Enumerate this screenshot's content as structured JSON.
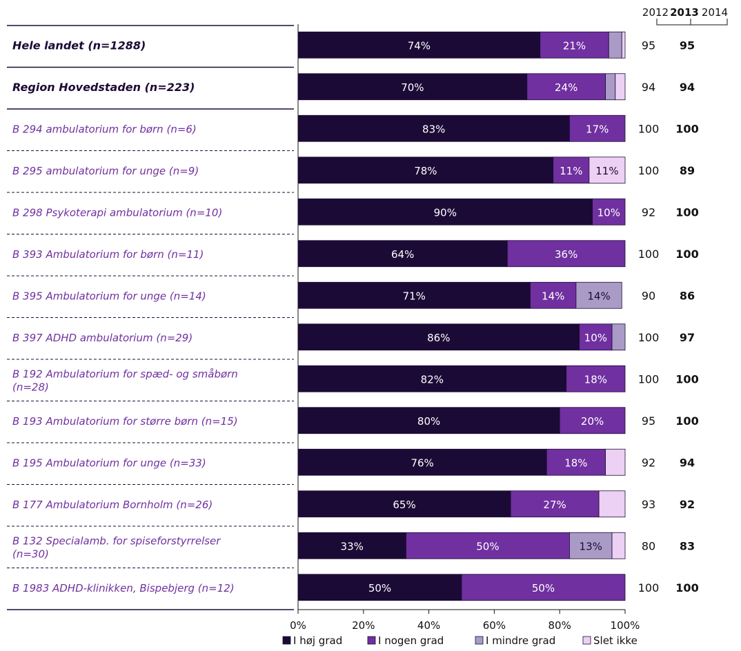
{
  "chart_data": {
    "type": "bar",
    "orientation": "horizontal",
    "stacked": true,
    "normalized_percent": true,
    "xlim": [
      0,
      100
    ],
    "x_ticks": [
      "0%",
      "20%",
      "40%",
      "60%",
      "80%",
      "100%"
    ],
    "grid": false,
    "legend_position": "bottom",
    "colors": {
      "I høj grad": "#1c0a36",
      "I nogen grad": "#7030a0",
      "I mindre grad": "#a99bc6",
      "Slet ikke": "#ecd1f4",
      "label_text": "#7030a0",
      "main_text": "#1c0a36"
    },
    "series": [
      {
        "name": "I høj grad",
        "values": [
          74,
          70,
          83,
          78,
          90,
          64,
          71,
          86,
          82,
          80,
          76,
          65,
          33,
          50
        ]
      },
      {
        "name": "I nogen grad",
        "values": [
          21,
          24,
          17,
          11,
          10,
          36,
          14,
          10,
          18,
          20,
          18,
          27,
          50,
          50
        ]
      },
      {
        "name": "I mindre grad",
        "values": [
          4,
          3,
          0,
          0,
          0,
          0,
          14,
          4,
          0,
          0,
          0,
          0,
          13,
          0
        ]
      },
      {
        "name": "Slet ikke",
        "values": [
          1,
          3,
          0,
          11,
          0,
          0,
          0,
          0,
          0,
          0,
          6,
          8,
          4,
          0
        ]
      }
    ],
    "data_labels": [
      [
        "74%",
        "21%",
        "",
        ""
      ],
      [
        "70%",
        "24%",
        "",
        ""
      ],
      [
        "83%",
        "17%",
        "",
        ""
      ],
      [
        "78%",
        "11%",
        "",
        "11%"
      ],
      [
        "90%",
        "10%",
        "",
        ""
      ],
      [
        "64%",
        "36%",
        "",
        ""
      ],
      [
        "71%",
        "14%",
        "14%",
        ""
      ],
      [
        "86%",
        "10%",
        "",
        ""
      ],
      [
        "82%",
        "18%",
        "",
        ""
      ],
      [
        "80%",
        "20%",
        "",
        ""
      ],
      [
        "76%",
        "18%",
        "",
        ""
      ],
      [
        "65%",
        "27%",
        "",
        ""
      ],
      [
        "33%",
        "50%",
        "13%",
        ""
      ],
      [
        "50%",
        "50%",
        "",
        ""
      ]
    ],
    "categories": [
      {
        "label": "Hele landet (n=1288)",
        "style": "bold-italic"
      },
      {
        "label": "Region Hovedstaden (n=223)",
        "style": "bold"
      },
      {
        "label": "B 294 ambulatorium for børn (n=6)",
        "style": "italic"
      },
      {
        "label": "B 295 ambulatorium for unge (n=9)",
        "style": "italic"
      },
      {
        "label": "B 298 Psykoterapi ambulatorium (n=10)",
        "style": "italic"
      },
      {
        "label": "B 393 Ambulatorium for børn (n=11)",
        "style": "italic"
      },
      {
        "label": "B 395 Ambulatorium for unge (n=14)",
        "style": "italic"
      },
      {
        "label": "B 397 ADHD ambulatorium (n=29)",
        "style": "italic"
      },
      {
        "label": "B 192 Ambulatorium for spæd- og småbørn (n=28)",
        "lines": [
          "B 192 Ambulatorium for spæd- og småbørn",
          "(n=28)"
        ],
        "style": "italic"
      },
      {
        "label": "B 193 Ambulatorium for større børn (n=15)",
        "style": "italic"
      },
      {
        "label": "B 195 Ambulatorium for unge (n=33)",
        "style": "italic"
      },
      {
        "label": "B 177 Ambulatorium Bornholm (n=26)",
        "style": "italic"
      },
      {
        "label": "B 132 Specialamb. for spiseforstyrrelser (n=30)",
        "lines": [
          "B 132 Specialamb. for spiseforstyrrelser",
          "(n=30)"
        ],
        "style": "italic"
      },
      {
        "label": "B 1983 ADHD-klinikken, Bispebjerg (n=12)",
        "style": "italic"
      }
    ],
    "year_headers": [
      "2012",
      "2013",
      "2014"
    ],
    "year_values": {
      "2012": [
        "95",
        "94",
        "100",
        "100",
        "92",
        "100",
        "90",
        "100",
        "100",
        "95",
        "92",
        "93",
        "80",
        "100"
      ],
      "2013": [
        "95",
        "94",
        "100",
        "89",
        "100",
        "100",
        "86",
        "97",
        "100",
        "100",
        "94",
        "92",
        "83",
        "100"
      ]
    }
  }
}
